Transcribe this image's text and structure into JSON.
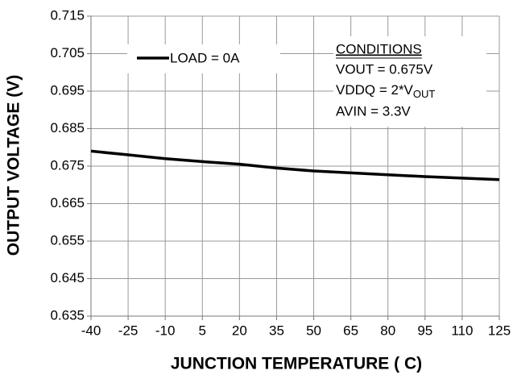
{
  "chart_data": {
    "type": "line",
    "x": [
      -40,
      -25,
      -10,
      5,
      20,
      35,
      50,
      65,
      80,
      95,
      110,
      125
    ],
    "series": [
      {
        "name": "LOAD = 0A",
        "color": "#000000",
        "values": [
          0.679,
          0.678,
          0.677,
          0.6762,
          0.6755,
          0.6745,
          0.6737,
          0.6732,
          0.6727,
          0.6722,
          0.6718,
          0.6714
        ]
      }
    ],
    "xlim": [
      -40,
      125
    ],
    "xticks": [
      -40,
      -25,
      -10,
      5,
      20,
      35,
      50,
      65,
      80,
      95,
      110,
      125
    ],
    "ylim": [
      0.635,
      0.715
    ],
    "yticks": [
      0.635,
      0.645,
      0.655,
      0.665,
      0.675,
      0.685,
      0.695,
      0.705,
      0.715
    ],
    "xlabel": "JUNCTION TEMPERATURE ( C)",
    "ylabel": "OUTPUT VOLTAGE (V)",
    "grid": true,
    "conditions": {
      "title": "CONDITIONS",
      "line1": "VOUT = 0.675V",
      "line2": "VDDQ = 2*V",
      "line2_sub": "OUT",
      "line3": "AVIN = 3.3V"
    }
  }
}
